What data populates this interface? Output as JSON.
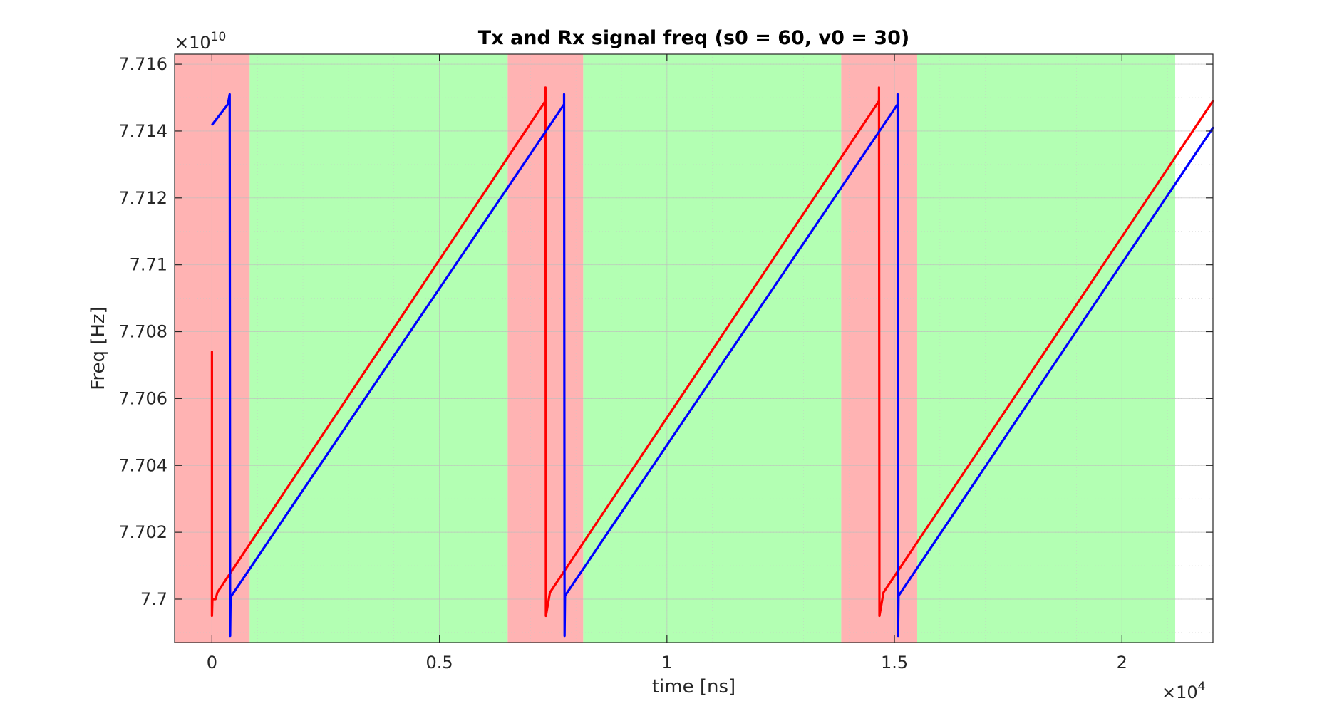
{
  "chart_data": {
    "type": "line",
    "title": "Tx and Rx signal freq (s0 = 60, v0 = 30)",
    "xlabel": "time [ns]",
    "ylabel": "Freq [Hz]",
    "x_exponent": {
      "base": "×10",
      "power": "4"
    },
    "y_exponent": {
      "base": "×10",
      "power": "10"
    },
    "xlim": [
      -0.082,
      2.2
    ],
    "ylim": [
      7.6987,
      7.7163
    ],
    "x_ticks": [
      0,
      0.5,
      1,
      1.5,
      2
    ],
    "x_tick_labels": [
      "0",
      "0.5",
      "1",
      "1.5",
      "2"
    ],
    "y_ticks": [
      7.7,
      7.702,
      7.704,
      7.706,
      7.708,
      7.71,
      7.712,
      7.714,
      7.716
    ],
    "y_tick_labels": [
      "7.7",
      "7.702",
      "7.704",
      "7.706",
      "7.708",
      "7.71",
      "7.712",
      "7.714",
      "7.716"
    ],
    "grid": true,
    "minor_grid": true,
    "shaded_regions": [
      {
        "x0": -0.082,
        "x1": 0.083,
        "color": "#ffb3b3"
      },
      {
        "x0": 0.083,
        "x1": 0.65,
        "color": "#b3ffb3"
      },
      {
        "x0": 0.65,
        "x1": 0.816,
        "color": "#ffb3b3"
      },
      {
        "x0": 0.816,
        "x1": 1.383,
        "color": "#b3ffb3"
      },
      {
        "x0": 1.383,
        "x1": 1.55,
        "color": "#ffb3b3"
      },
      {
        "x0": 1.55,
        "x1": 2.117,
        "color": "#b3ffb3"
      }
    ],
    "series": [
      {
        "color": "#ff0000",
        "x": [
          0,
          0,
          0.001,
          0.008,
          0.012,
          0.733,
          0.733,
          0.734,
          0.743,
          1.466,
          1.466,
          1.467,
          1.476,
          2.2
        ],
        "y": [
          7.7074,
          7.6995,
          7.7,
          7.7,
          7.7002,
          7.7149,
          7.7153,
          7.6995,
          7.7002,
          7.7149,
          7.7153,
          7.6995,
          7.7002,
          7.7149
        ]
      },
      {
        "color": "#0000ff",
        "x": [
          0.001,
          0.035,
          0.039,
          0.04,
          0.041,
          0.043,
          0.774,
          0.774,
          0.775,
          0.776,
          1.507,
          1.507,
          1.508,
          1.509,
          2.2
        ],
        "y": [
          7.7142,
          7.7148,
          7.7151,
          7.6989,
          7.7,
          7.7001,
          7.7148,
          7.7151,
          7.6989,
          7.7001,
          7.7148,
          7.7151,
          7.6989,
          7.7001,
          7.7141
        ]
      }
    ]
  }
}
